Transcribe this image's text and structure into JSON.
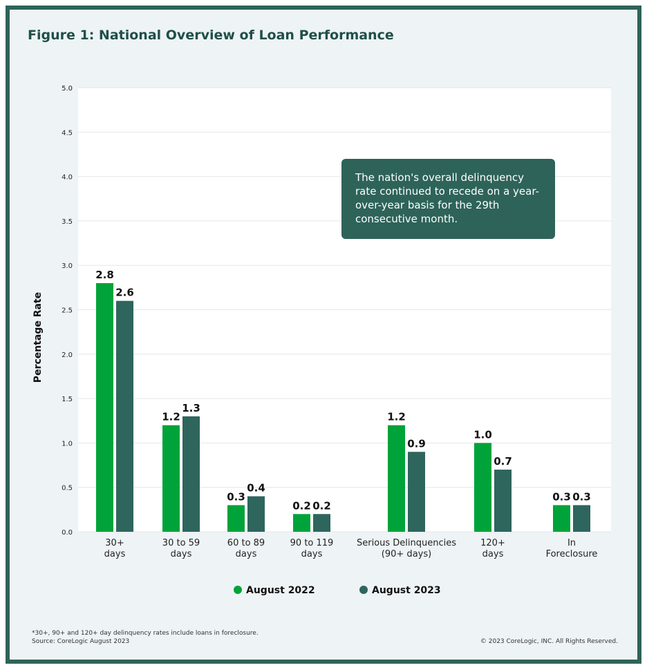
{
  "title": "Figure 1: National Overview of Loan Performance",
  "annotation": "The nation's overall delinquency rate continued to recede on a year-over-year basis for the 29th consecutive month.",
  "footnote": "*30+, 90+ and 120+ day delinquency rates include loans in foreclosure.",
  "source": "Source: CoreLogic August 2023",
  "copyright": "© 2023 CoreLogic, INC. All Rights Reserved.",
  "colors": {
    "august_2022": "#00a33a",
    "august_2023": "#2e655c"
  },
  "chart_data": {
    "type": "bar",
    "title": "Figure 1: National Overview of Loan Performance",
    "xlabel": "",
    "ylabel": "Percentage Rate",
    "ylim": [
      0,
      5.0
    ],
    "yticks": [
      "0.0",
      "0.5",
      "1.0",
      "1.5",
      "2.0",
      "2.5",
      "3.0",
      "3.5",
      "4.0",
      "4.5",
      "5.0"
    ],
    "grid": true,
    "legend": "bottom",
    "categories": [
      [
        "30+",
        "days"
      ],
      [
        "30 to 59",
        "days"
      ],
      [
        "60 to 89",
        "days"
      ],
      [
        "90 to 119",
        "days"
      ],
      [
        "Serious Delinquencies",
        "(90+ days)"
      ],
      [
        "120+",
        "days"
      ],
      [
        "In",
        "Foreclosure"
      ]
    ],
    "series": [
      {
        "name": "August 2022",
        "values": [
          2.8,
          1.2,
          0.3,
          0.2,
          1.2,
          1.0,
          0.3
        ]
      },
      {
        "name": "August 2023",
        "values": [
          2.6,
          1.3,
          0.4,
          0.2,
          0.9,
          0.7,
          0.3
        ]
      }
    ]
  }
}
